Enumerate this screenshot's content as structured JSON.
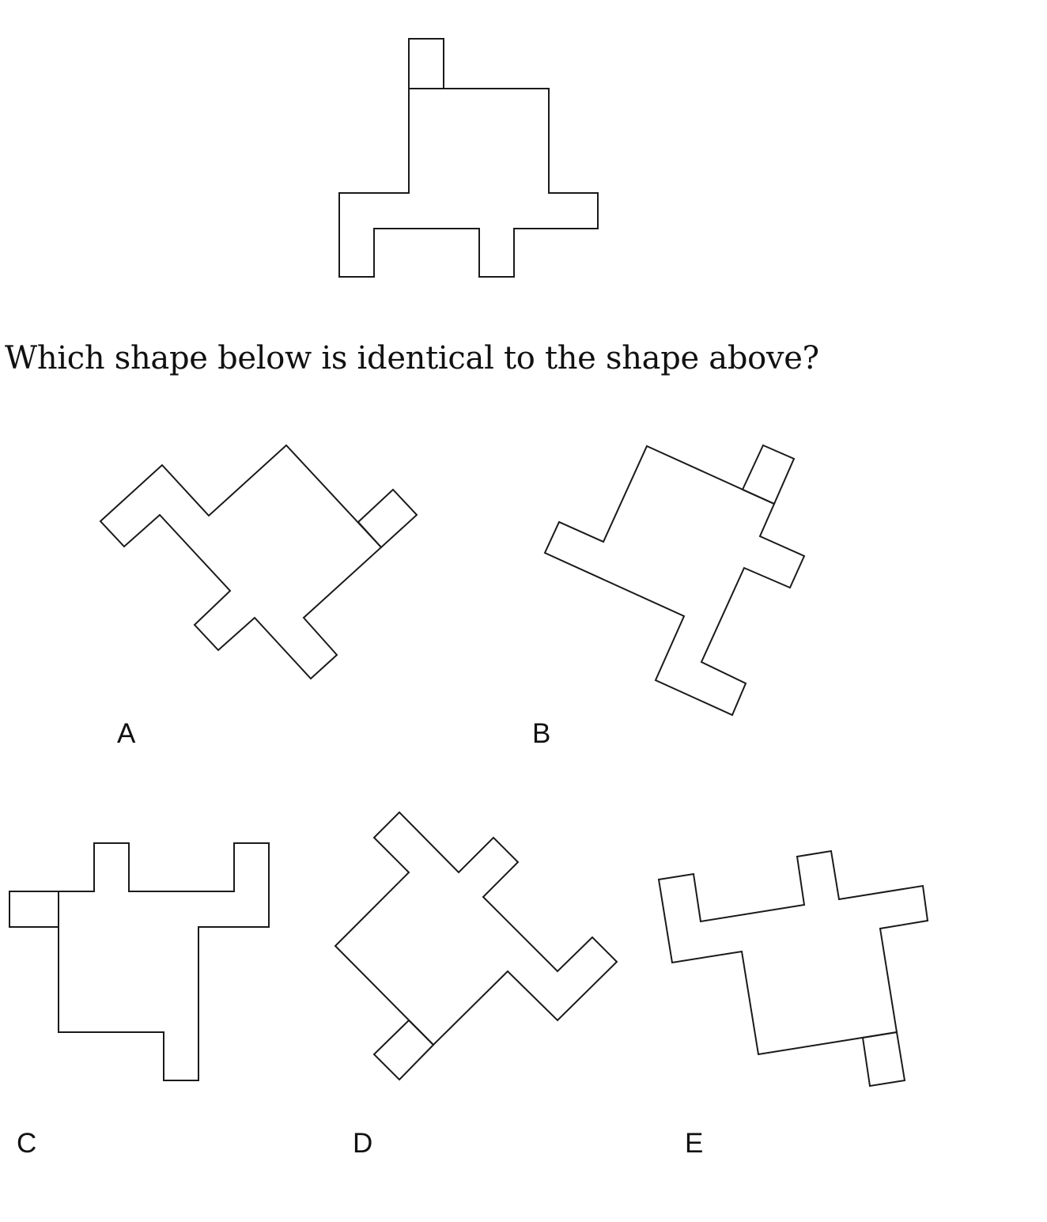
{
  "question": "Which shape below is identical to the shape above?",
  "reference_shape": {
    "name": "reference-shape"
  },
  "options": [
    {
      "id": "a",
      "label": "A"
    },
    {
      "id": "b",
      "label": "B"
    },
    {
      "id": "c",
      "label": "C"
    },
    {
      "id": "d",
      "label": "D"
    },
    {
      "id": "e",
      "label": "E"
    }
  ],
  "colors": {
    "stroke": "#1a1a1a",
    "background": "#ffffff",
    "text": "#111111"
  }
}
